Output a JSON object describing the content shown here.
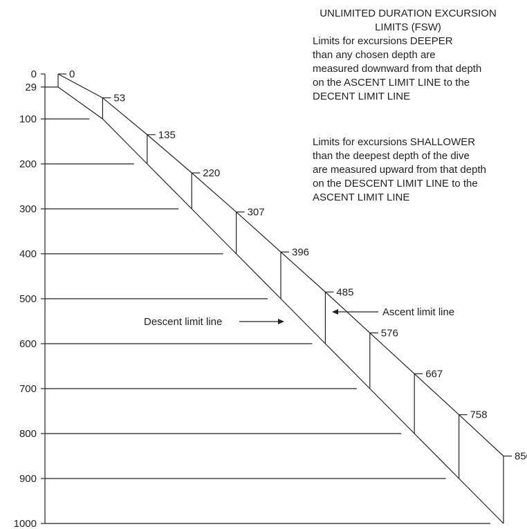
{
  "header": {
    "title_line1": "UNLIMITED DURATION EXCURSION",
    "title_line2": "LIMITS (FSW)"
  },
  "notes": {
    "deeper": [
      "Limits for excursions DEEPER",
      "than any chosen depth are",
      "measured downward from that depth",
      "on the ASCENT LIMIT LINE to the",
      "DECENT LIMIT LINE"
    ],
    "shallower": [
      "Limits for excursions SHALLOWER",
      "than the deepest depth of the dive",
      "are measured upward from that depth",
      "on the DESCENT LIMIT LINE to the",
      "ASCENT LIMIT LINE"
    ]
  },
  "labels": {
    "descent_line": "Descent limit line",
    "ascent_line": "Ascent limit line"
  },
  "axis": {
    "ticks": [
      {
        "value": 0,
        "label": "0"
      },
      {
        "value": 29,
        "label": "29"
      },
      {
        "value": 100,
        "label": "100"
      },
      {
        "value": 200,
        "label": "200"
      },
      {
        "value": 300,
        "label": "300"
      },
      {
        "value": 400,
        "label": "400"
      },
      {
        "value": 500,
        "label": "500"
      },
      {
        "value": 600,
        "label": "600"
      },
      {
        "value": 700,
        "label": "700"
      },
      {
        "value": 800,
        "label": "800"
      },
      {
        "value": 900,
        "label": "900"
      },
      {
        "value": 1000,
        "label": "1000"
      }
    ],
    "range": [
      0,
      1000
    ]
  },
  "excursion_limits": [
    {
      "depth": 0,
      "ascent_limit": 0,
      "label": "0"
    },
    {
      "depth": 100,
      "ascent_limit": 53,
      "label": "53"
    },
    {
      "depth": 200,
      "ascent_limit": 135,
      "label": "135"
    },
    {
      "depth": 300,
      "ascent_limit": 220,
      "label": "220"
    },
    {
      "depth": 400,
      "ascent_limit": 307,
      "label": "307"
    },
    {
      "depth": 500,
      "ascent_limit": 396,
      "label": "396"
    },
    {
      "depth": 600,
      "ascent_limit": 485,
      "label": "485"
    },
    {
      "depth": 700,
      "ascent_limit": 576,
      "label": "576"
    },
    {
      "depth": 800,
      "ascent_limit": 667,
      "label": "667"
    },
    {
      "depth": 900,
      "ascent_limit": 758,
      "label": "758"
    },
    {
      "depth": 1000,
      "ascent_limit": 850,
      "label": "850"
    }
  ]
}
